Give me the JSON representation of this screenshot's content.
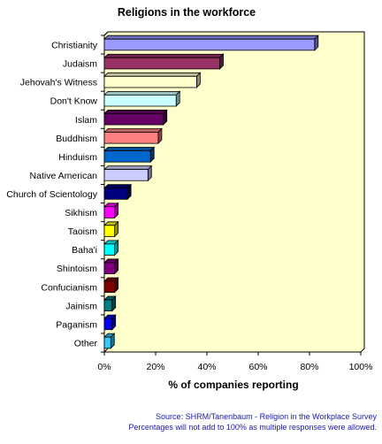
{
  "chart_data": {
    "type": "bar",
    "orientation": "horizontal",
    "title": "Religions in the workforce",
    "xlabel": "% of companies reporting",
    "ylabel": "",
    "xlim": [
      0,
      100
    ],
    "x_ticks": [
      "0%",
      "20%",
      "40%",
      "60%",
      "80%",
      "100%"
    ],
    "grid": false,
    "categories": [
      "Christianity",
      "Judaism",
      "Jehovah's Witness",
      "Don't Know",
      "Islam",
      "Buddhism",
      "Hinduism",
      "Native American",
      "Church of Scientology",
      "Sikhism",
      "Taoism",
      "Baha'i",
      "Shintoism",
      "Confucianism",
      "Jainism",
      "Paganism",
      "Other"
    ],
    "values": [
      82,
      45,
      36,
      28,
      23,
      21,
      18,
      17,
      9,
      4,
      4,
      4,
      4,
      4,
      3,
      3,
      2.5
    ],
    "colors": [
      "#9999ff",
      "#993366",
      "#ffffcc",
      "#ccffff",
      "#660066",
      "#ff8080",
      "#0066cc",
      "#ccccff",
      "#000080",
      "#ff00ff",
      "#ffff00",
      "#00ffff",
      "#800080",
      "#800000",
      "#008080",
      "#0000ff",
      "#33ccff"
    ],
    "plot_bg": "#ffffcc"
  },
  "notes": {
    "source": "Source: SHRM/Tanenbaum - Religion in the Workplace Survey",
    "disclaimer": "Percentages will not add to 100% as multiple responses were allowed."
  }
}
